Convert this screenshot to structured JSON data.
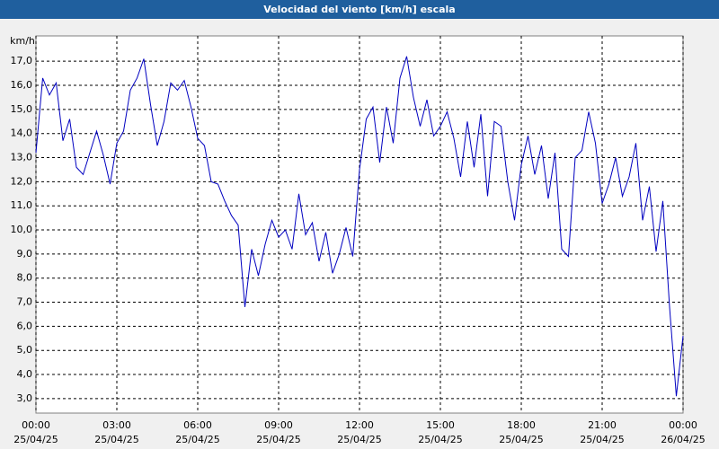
{
  "chart_data": {
    "type": "line",
    "title": "Velocidad del viento [km/h] escala",
    "y_label": "km/h",
    "x": [
      "25/04/25 00:00",
      "25/04/25 00:15",
      "25/04/25 00:30",
      "25/04/25 00:45",
      "25/04/25 01:00",
      "25/04/25 01:15",
      "25/04/25 01:30",
      "25/04/25 01:45",
      "25/04/25 02:00",
      "25/04/25 02:15",
      "25/04/25 02:30",
      "25/04/25 02:45",
      "25/04/25 03:00",
      "25/04/25 03:15",
      "25/04/25 03:30",
      "25/04/25 03:45",
      "25/04/25 04:00",
      "25/04/25 04:15",
      "25/04/25 04:30",
      "25/04/25 04:45",
      "25/04/25 05:00",
      "25/04/25 05:15",
      "25/04/25 05:30",
      "25/04/25 05:45",
      "25/04/25 06:00",
      "25/04/25 06:15",
      "25/04/25 06:30",
      "25/04/25 06:45",
      "25/04/25 07:00",
      "25/04/25 07:15",
      "25/04/25 07:30",
      "25/04/25 07:45",
      "25/04/25 08:00",
      "25/04/25 08:15",
      "25/04/25 08:30",
      "25/04/25 08:45",
      "25/04/25 09:00",
      "25/04/25 09:15",
      "25/04/25 09:30",
      "25/04/25 09:45",
      "25/04/25 10:00",
      "25/04/25 10:15",
      "25/04/25 10:30",
      "25/04/25 10:45",
      "25/04/25 11:00",
      "25/04/25 11:15",
      "25/04/25 11:30",
      "25/04/25 11:45",
      "25/04/25 12:00",
      "25/04/25 12:15",
      "25/04/25 12:30",
      "25/04/25 12:45",
      "25/04/25 13:00",
      "25/04/25 13:15",
      "25/04/25 13:30",
      "25/04/25 13:45",
      "25/04/25 14:00",
      "25/04/25 14:15",
      "25/04/25 14:30",
      "25/04/25 14:45",
      "25/04/25 15:00",
      "25/04/25 15:15",
      "25/04/25 15:30",
      "25/04/25 15:45",
      "25/04/25 16:00",
      "25/04/25 16:15",
      "25/04/25 16:30",
      "25/04/25 16:45",
      "25/04/25 17:00",
      "25/04/25 17:15",
      "25/04/25 17:30",
      "25/04/25 17:45",
      "25/04/25 18:00",
      "25/04/25 18:15",
      "25/04/25 18:30",
      "25/04/25 18:45",
      "25/04/25 19:00",
      "25/04/25 19:15",
      "25/04/25 19:30",
      "25/04/25 19:45",
      "25/04/25 20:00",
      "25/04/25 20:15",
      "25/04/25 20:30",
      "25/04/25 20:45",
      "25/04/25 21:00",
      "25/04/25 21:15",
      "25/04/25 21:30",
      "25/04/25 21:45",
      "25/04/25 22:00",
      "25/04/25 22:15",
      "25/04/25 22:30",
      "25/04/25 22:45",
      "25/04/25 23:00",
      "25/04/25 23:15",
      "25/04/25 23:30",
      "25/04/25 23:45",
      "26/04/25 00:00"
    ],
    "series": [
      {
        "color": "#0000c0",
        "values": [
          13.2,
          16.3,
          15.6,
          16.1,
          13.7,
          14.6,
          12.6,
          12.3,
          13.2,
          14.1,
          13.1,
          11.9,
          13.6,
          14.1,
          15.8,
          16.3,
          17.1,
          15.2,
          13.5,
          14.5,
          16.1,
          15.8,
          16.2,
          15.1,
          13.8,
          13.5,
          12.0,
          11.9,
          11.2,
          10.6,
          10.2,
          6.8,
          9.2,
          8.1,
          9.4,
          10.4,
          9.7,
          10.0,
          9.2,
          11.5,
          9.8,
          10.3,
          8.7,
          9.9,
          8.2,
          9.0,
          10.1,
          8.9,
          12.5,
          14.6,
          15.1,
          12.8,
          15.1,
          13.6,
          16.3,
          17.2,
          15.5,
          14.3,
          15.4,
          13.9,
          14.3,
          14.9,
          13.8,
          12.2,
          14.5,
          12.6,
          14.8,
          11.4,
          14.5,
          14.3,
          12.0,
          10.4,
          12.7,
          13.9,
          12.3,
          13.5,
          11.3,
          13.2,
          9.2,
          8.9,
          13.0,
          13.3,
          14.9,
          13.6,
          11.1,
          11.9,
          13.0,
          11.4,
          12.2,
          13.6,
          10.4,
          11.8,
          9.1,
          11.2,
          6.8,
          3.1,
          5.6
        ]
      }
    ],
    "ylim": [
      2.4,
      18.05
    ],
    "yticks": [
      {
        "value": 3,
        "label": "3,0"
      },
      {
        "value": 4,
        "label": "4,0"
      },
      {
        "value": 5,
        "label": "5,0"
      },
      {
        "value": 6,
        "label": "6,0"
      },
      {
        "value": 7,
        "label": "7,0"
      },
      {
        "value": 8,
        "label": "8,0"
      },
      {
        "value": 9,
        "label": "9,0"
      },
      {
        "value": 10,
        "label": "10,0"
      },
      {
        "value": 11,
        "label": "11,0"
      },
      {
        "value": 12,
        "label": "12,0"
      },
      {
        "value": 13,
        "label": "13,0"
      },
      {
        "value": 14,
        "label": "14,0"
      },
      {
        "value": 15,
        "label": "15,0"
      },
      {
        "value": 16,
        "label": "16,0"
      },
      {
        "value": 17,
        "label": "17,0"
      }
    ],
    "xticks": [
      {
        "value": "25/04/25 00:00",
        "label": [
          "00:00",
          "25/04/25"
        ]
      },
      {
        "value": "25/04/25 03:00",
        "label": [
          "03:00",
          "25/04/25"
        ]
      },
      {
        "value": "25/04/25 06:00",
        "label": [
          "06:00",
          "25/04/25"
        ]
      },
      {
        "value": "25/04/25 09:00",
        "label": [
          "09:00",
          "25/04/25"
        ]
      },
      {
        "value": "25/04/25 12:00",
        "label": [
          "12:00",
          "25/04/25"
        ]
      },
      {
        "value": "25/04/25 15:00",
        "label": [
          "15:00",
          "25/04/25"
        ]
      },
      {
        "value": "25/04/25 18:00",
        "label": [
          "18:00",
          "25/04/25"
        ]
      },
      {
        "value": "25/04/25 21:00",
        "label": [
          "21:00",
          "25/04/25"
        ]
      },
      {
        "value": "26/04/25 00:00",
        "label": [
          "00:00",
          "26/04/25"
        ]
      }
    ],
    "grid": true
  }
}
